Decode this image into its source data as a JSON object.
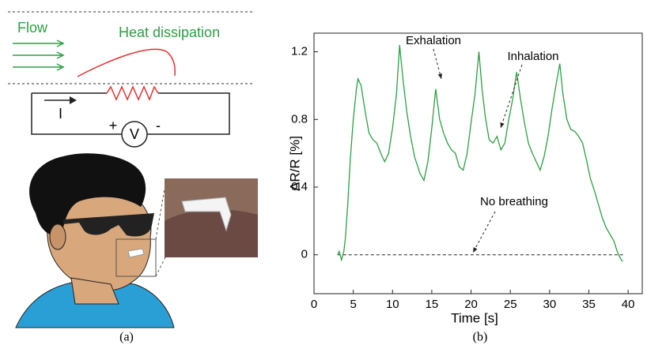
{
  "panel_a": {
    "flow": "Flow",
    "heat": "Heat dissipation",
    "current": "I",
    "plus": "+",
    "voltmeter": "V",
    "minus": "-",
    "caption": "(a)"
  },
  "chart_data": {
    "type": "line",
    "caption": "(b)",
    "xlabel": "Time [s]",
    "ylabel": "ΔR/R [%]",
    "annotations": [
      "Exhalation",
      "Inhalation",
      "No breathing"
    ],
    "series": [
      {
        "color": "#2e9e44",
        "x": [
          3.0,
          3.2,
          3.5,
          3.8,
          4.0,
          4.3,
          4.6,
          5.0,
          5.4,
          5.6,
          6.0,
          6.5,
          7.0,
          7.5,
          8.0,
          8.5,
          9.0,
          9.5,
          10.0,
          10.5,
          10.9,
          11.3,
          11.8,
          12.3,
          12.8,
          13.5,
          14.0,
          14.5,
          15.0,
          15.5,
          16.0,
          16.5,
          17.0,
          17.5,
          18.0,
          18.5,
          19.0,
          19.5,
          20.0,
          20.5,
          21.0,
          21.4,
          21.8,
          22.3,
          22.8,
          23.3,
          23.8,
          24.3,
          24.8,
          25.3,
          25.8,
          26.3,
          26.8,
          27.3,
          27.8,
          28.3,
          28.8,
          29.3,
          29.8,
          30.3,
          30.8,
          31.3,
          31.7,
          32.2,
          32.7,
          33.2,
          33.7,
          34.2,
          34.7,
          35.2,
          35.7,
          36.2,
          36.7,
          37.2,
          37.7,
          38.2,
          38.6,
          39.0,
          39.3
        ],
        "values": [
          0.0,
          0.02,
          -0.03,
          0.02,
          0.1,
          0.3,
          0.55,
          0.8,
          0.98,
          1.04,
          1.0,
          0.85,
          0.72,
          0.68,
          0.66,
          0.6,
          0.55,
          0.6,
          0.75,
          0.95,
          1.24,
          1.05,
          0.85,
          0.7,
          0.58,
          0.48,
          0.44,
          0.55,
          0.75,
          0.98,
          0.8,
          0.72,
          0.66,
          0.62,
          0.6,
          0.52,
          0.5,
          0.6,
          0.78,
          0.95,
          1.2,
          0.98,
          0.82,
          0.68,
          0.66,
          0.7,
          0.62,
          0.66,
          0.8,
          0.92,
          1.08,
          0.92,
          0.78,
          0.66,
          0.6,
          0.55,
          0.5,
          0.58,
          0.7,
          0.86,
          1.0,
          1.13,
          0.95,
          0.8,
          0.74,
          0.73,
          0.7,
          0.66,
          0.56,
          0.45,
          0.38,
          0.3,
          0.22,
          0.16,
          0.12,
          0.08,
          0.02,
          -0.02,
          -0.04
        ]
      }
    ],
    "baseline": {
      "y": 0,
      "x": [
        3,
        39.5
      ],
      "style": "dashed"
    },
    "xlim": [
      0,
      41.8
    ],
    "ylim": [
      -0.23,
      1.31
    ],
    "xticks": [
      0,
      5,
      10,
      15,
      20,
      25,
      30,
      35,
      40
    ],
    "yticks": [
      0,
      0.4,
      0.8,
      1.2
    ]
  }
}
